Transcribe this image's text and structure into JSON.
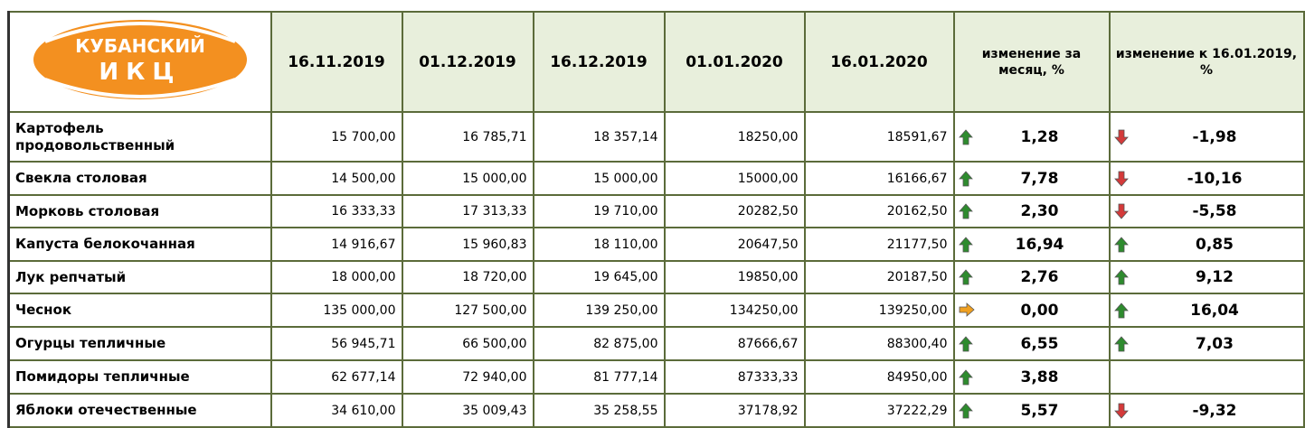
{
  "logo": {
    "line1": "КУБАНСКИЙ",
    "line2": "ИКЦ"
  },
  "table": {
    "header": [
      "16.11.2019",
      "01.12.2019",
      "16.12.2019",
      "01.01.2020",
      "16.01.2020",
      "изменение за месяц, %",
      "изменение к 16.01.2019, %"
    ],
    "rows": [
      [
        "Картофель продовольственный",
        "15 700,00",
        "16 785,71",
        "18 357,14",
        "18250,00",
        "18591,67",
        "1,28",
        "-1,98"
      ],
      [
        "Свекла столовая",
        "14 500,00",
        "15 000,00",
        "15 000,00",
        "15000,00",
        "16166,67",
        "7,78",
        "-10,16"
      ],
      [
        "Морковь столовая",
        "16 333,33",
        "17 313,33",
        "19 710,00",
        "20282,50",
        "20162,50",
        "2,30",
        "-5,58"
      ],
      [
        "Капуста белокочанная",
        "14 916,67",
        "15 960,83",
        "18 110,00",
        "20647,50",
        "21177,50",
        "16,94",
        "0,85"
      ],
      [
        "Лук репчатый",
        "18 000,00",
        "18 720,00",
        "19 645,00",
        "19850,00",
        "20187,50",
        "2,76",
        "9,12"
      ],
      [
        "Чеснок",
        "135 000,00",
        "127 500,00",
        "139 250,00",
        "134250,00",
        "139250,00",
        "0,00",
        "16,04"
      ],
      [
        "Огурцы тепличные",
        "56 945,71",
        "66 500,00",
        "82 875,00",
        "87666,67",
        "88300,40",
        "6,55",
        "7,03"
      ],
      [
        "Помидоры тепличные",
        "62 677,14",
        "72 940,00",
        "81 777,14",
        "87333,33",
        "84950,00",
        "3,88",
        null
      ],
      [
        "Яблоки отечественные",
        "34 610,00",
        "35 009,43",
        "35 258,55",
        "37178,92",
        "37222,29",
        "5,57",
        "-9,32"
      ]
    ]
  }
}
